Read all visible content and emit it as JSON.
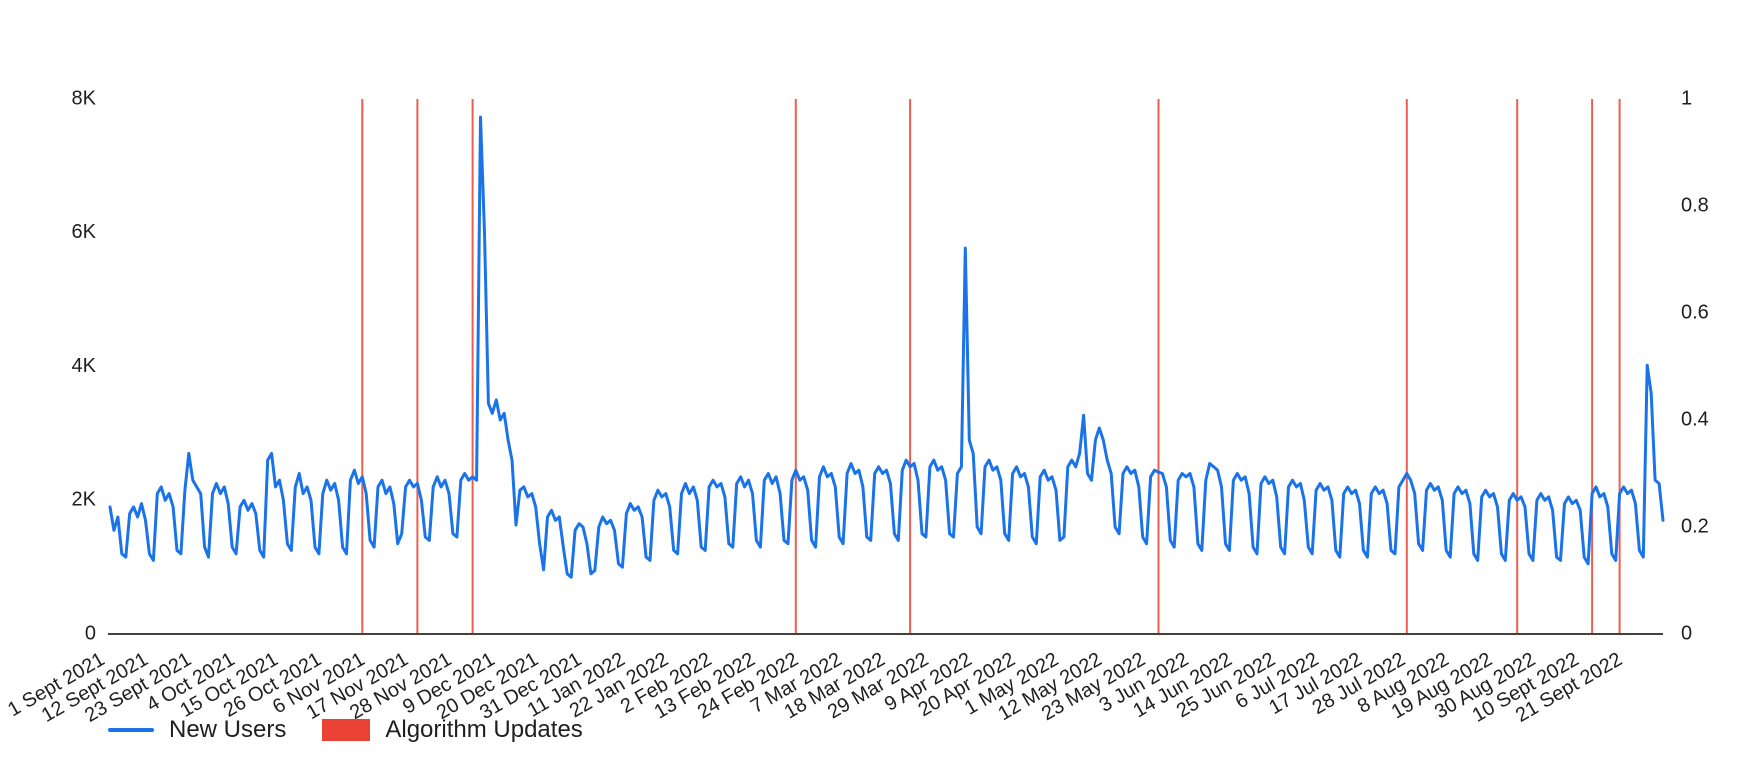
{
  "chart": {
    "legend": {
      "new_users": "New Users",
      "algorithm_updates": "Algorithm Updates"
    },
    "colors": {
      "line": "#1a73e8",
      "update": "#ea4335",
      "axis_line": "#424242",
      "text": "#1f1f1f"
    }
  },
  "chart_data": {
    "type": "line",
    "title": "",
    "grid": "off",
    "legend_position": "bottom-left",
    "x_axis": {
      "start_label": "1 Sept 2021",
      "tick_interval_days": 11,
      "tick_labels": [
        "1 Sept 2021",
        "12 Sept 2021",
        "23 Sept 2021",
        "4 Oct 2021",
        "15 Oct 2021",
        "26 Oct 2021",
        "6 Nov 2021",
        "17 Nov 2021",
        "28 Nov 2021",
        "9 Dec 2021",
        "20 Dec 2021",
        "31 Dec 2021",
        "11 Jan 2022",
        "22 Jan 2022",
        "2 Feb 2022",
        "13 Feb 2022",
        "24 Feb 2022",
        "7 Mar 2022",
        "18 Mar 2022",
        "29 Mar 2022",
        "9 Apr 2022",
        "20 Apr 2022",
        "1 May 2022",
        "12 May 2022",
        "23 May 2022",
        "3 Jun 2022",
        "14 Jun 2022",
        "25 Jun 2022",
        "6 Jul 2022",
        "17 Jul 2022",
        "28 Jul 2022",
        "8 Aug 2022",
        "19 Aug 2022",
        "30 Aug 2022",
        "10 Sept 2022",
        "21 Sept 2022"
      ]
    },
    "y_axis_left": {
      "tick_labels": [
        "0",
        "2K",
        "4K",
        "6K",
        "8K"
      ],
      "tick_values": [
        0,
        2000,
        4000,
        6000,
        8000
      ],
      "range": [
        0,
        8000
      ]
    },
    "y_axis_right": {
      "tick_labels": [
        "0",
        "0.2",
        "0.4",
        "0.6",
        "0.8",
        "1"
      ],
      "tick_values": [
        0,
        0.2,
        0.4,
        0.6,
        0.8,
        1
      ],
      "range": [
        0,
        1
      ]
    },
    "series": [
      {
        "name": "New Users",
        "color": "#1a73e8",
        "cadence": "daily",
        "daily_values": [
          1900,
          1550,
          1750,
          1200,
          1150,
          1800,
          1900,
          1750,
          1950,
          1700,
          1200,
          1100,
          2100,
          2200,
          2000,
          2100,
          1900,
          1250,
          1200,
          2150,
          2700,
          2300,
          2200,
          2100,
          1300,
          1150,
          2100,
          2250,
          2100,
          2200,
          1950,
          1300,
          1200,
          1900,
          2000,
          1850,
          1950,
          1800,
          1250,
          1150,
          2600,
          2700,
          2200,
          2300,
          2000,
          1350,
          1250,
          2200,
          2400,
          2100,
          2200,
          2000,
          1300,
          1200,
          2100,
          2300,
          2150,
          2250,
          2000,
          1300,
          1200,
          2300,
          2450,
          2250,
          2350,
          2100,
          1400,
          1300,
          2200,
          2300,
          2100,
          2200,
          1950,
          1350,
          1500,
          2200,
          2300,
          2200,
          2250,
          2000,
          1450,
          1400,
          2200,
          2350,
          2200,
          2300,
          2100,
          1500,
          1450,
          2300,
          2400,
          2300,
          2350,
          2300,
          7730,
          6000,
          3450,
          3300,
          3500,
          3200,
          3300,
          2900,
          2600,
          1630,
          2150,
          2200,
          2050,
          2100,
          1900,
          1350,
          960,
          1750,
          1850,
          1700,
          1750,
          1300,
          900,
          850,
          1550,
          1650,
          1600,
          1350,
          900,
          950,
          1600,
          1750,
          1650,
          1700,
          1550,
          1050,
          1000,
          1800,
          1950,
          1850,
          1900,
          1750,
          1150,
          1100,
          2000,
          2150,
          2050,
          2100,
          1900,
          1250,
          1200,
          2100,
          2250,
          2100,
          2200,
          2000,
          1300,
          1250,
          2200,
          2300,
          2200,
          2250,
          2050,
          1350,
          1300,
          2250,
          2350,
          2200,
          2300,
          2100,
          1400,
          1300,
          2300,
          2400,
          2250,
          2350,
          2100,
          1400,
          1350,
          2300,
          2450,
          2300,
          2350,
          2150,
          1400,
          1300,
          2350,
          2500,
          2350,
          2400,
          2200,
          1450,
          1350,
          2400,
          2550,
          2400,
          2450,
          2200,
          1450,
          1400,
          2400,
          2500,
          2400,
          2450,
          2250,
          1500,
          1400,
          2450,
          2600,
          2500,
          2550,
          2300,
          1500,
          1450,
          2500,
          2600,
          2450,
          2500,
          2300,
          1500,
          1450,
          2400,
          2500,
          5770,
          2900,
          2700,
          1600,
          1500,
          2500,
          2600,
          2450,
          2500,
          2300,
          1500,
          1400,
          2400,
          2500,
          2350,
          2400,
          2200,
          1450,
          1350,
          2350,
          2450,
          2300,
          2350,
          2150,
          1400,
          1450,
          2500,
          2600,
          2500,
          2700,
          3270,
          2400,
          2300,
          2900,
          3080,
          2900,
          2600,
          2400,
          1600,
          1500,
          2400,
          2500,
          2400,
          2450,
          2200,
          1450,
          1350,
          2350,
          2450,
          2420,
          2400,
          2200,
          1400,
          1300,
          2300,
          2400,
          2350,
          2400,
          2200,
          1350,
          1250,
          2300,
          2550,
          2500,
          2450,
          2200,
          1350,
          1250,
          2300,
          2400,
          2300,
          2350,
          2100,
          1300,
          1200,
          2250,
          2350,
          2250,
          2300,
          2050,
          1300,
          1200,
          2200,
          2300,
          2200,
          2250,
          2000,
          1300,
          1200,
          2150,
          2250,
          2150,
          2200,
          2000,
          1250,
          1150,
          2100,
          2200,
          2100,
          2150,
          1950,
          1250,
          1150,
          2100,
          2200,
          2100,
          2150,
          1950,
          1250,
          1200,
          2200,
          2300,
          2400,
          2300,
          2100,
          1350,
          1250,
          2150,
          2250,
          2150,
          2200,
          2000,
          1250,
          1150,
          2100,
          2200,
          2100,
          2150,
          1950,
          1200,
          1100,
          2050,
          2150,
          2050,
          2100,
          1900,
          1200,
          1100,
          2000,
          2100,
          2000,
          2050,
          1900,
          1200,
          1100,
          2000,
          2100,
          2000,
          2050,
          1850,
          1150,
          1100,
          1950,
          2050,
          1950,
          2000,
          1850,
          1150,
          1050,
          2100,
          2200,
          2050,
          2100,
          1900,
          1200,
          1100,
          2100,
          2200,
          2100,
          2150,
          1950,
          1250,
          1150,
          4020,
          3600,
          2300,
          2250,
          1700
        ]
      }
    ],
    "events": {
      "name": "Algorithm Updates",
      "color": "#ea4335",
      "day_indices": [
        64,
        78,
        92,
        174,
        203,
        266,
        329,
        357,
        376,
        383
      ]
    }
  }
}
